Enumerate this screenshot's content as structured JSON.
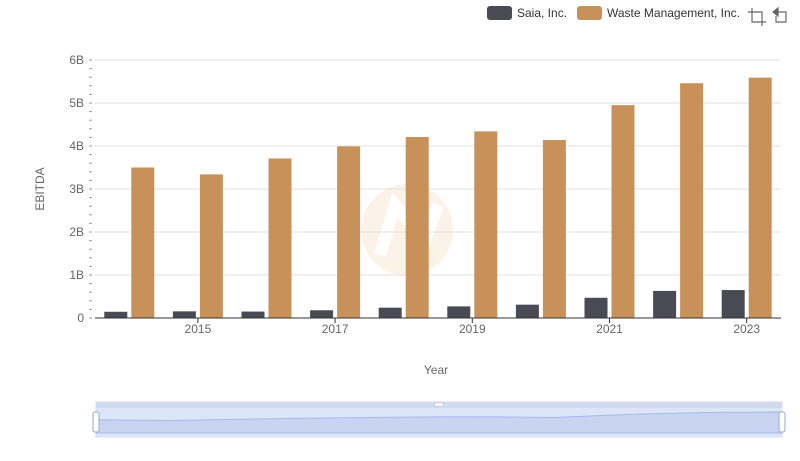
{
  "chart_data": {
    "type": "bar",
    "x": [
      2014,
      2015,
      2016,
      2017,
      2018,
      2019,
      2020,
      2021,
      2022,
      2023
    ],
    "x_tick_labels": [
      "2015",
      "2017",
      "2019",
      "2021",
      "2023"
    ],
    "xlabel": "Year",
    "ylabel": "EBITDA",
    "ylim": [
      0,
      6000000000
    ],
    "y_tick_labels": [
      "0",
      "1B",
      "2B",
      "3B",
      "4B",
      "5B",
      "6B"
    ],
    "grid": true,
    "legend_position": "top-right",
    "series": [
      {
        "name": "Saia, Inc.",
        "color": "#4a4a55",
        "values": [
          145000000,
          155000000,
          150000000,
          180000000,
          240000000,
          270000000,
          310000000,
          470000000,
          630000000,
          650000000
        ]
      },
      {
        "name": "Waste Management, Inc.",
        "color": "#c8915a",
        "values": [
          3500000000,
          3340000000,
          3710000000,
          3990000000,
          4210000000,
          4340000000,
          4140000000,
          4950000000,
          5460000000,
          5590000000
        ]
      }
    ]
  },
  "toolbar": {
    "icons": [
      "crop-icon",
      "restore-icon"
    ]
  },
  "datazoom": {
    "range_percent": [
      0,
      100
    ]
  }
}
